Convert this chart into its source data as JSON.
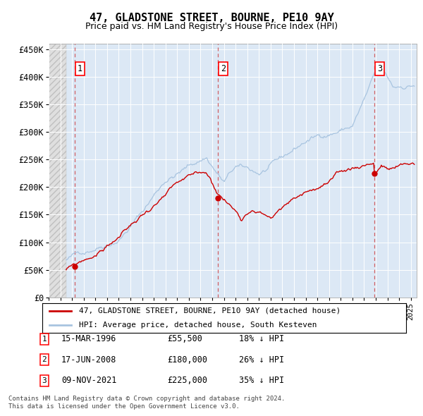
{
  "title": "47, GLADSTONE STREET, BOURNE, PE10 9AY",
  "subtitle": "Price paid vs. HM Land Registry's House Price Index (HPI)",
  "transactions": [
    {
      "num": 1,
      "date_str": "15-MAR-1996",
      "date_x": 1996.21,
      "price": 55500,
      "pct": "18%"
    },
    {
      "num": 2,
      "date_str": "17-JUN-2008",
      "date_x": 2008.46,
      "price": 180000,
      "pct": "26%"
    },
    {
      "num": 3,
      "date_str": "09-NOV-2021",
      "date_x": 2021.86,
      "price": 225000,
      "pct": "35%"
    }
  ],
  "legend_house": "47, GLADSTONE STREET, BOURNE, PE10 9AY (detached house)",
  "legend_hpi": "HPI: Average price, detached house, South Kesteven",
  "footer1": "Contains HM Land Registry data © Crown copyright and database right 2024.",
  "footer2": "This data is licensed under the Open Government Licence v3.0.",
  "hpi_color": "#a8c4e0",
  "house_color": "#cc0000",
  "dashed_color": "#cc3333",
  "background_plot": "#dce8f5",
  "xlim": [
    1994,
    2025.5
  ],
  "ylim": [
    0,
    460000
  ],
  "yticks": [
    0,
    50000,
    100000,
    150000,
    200000,
    250000,
    300000,
    350000,
    400000,
    450000
  ],
  "hatch_end": 1995.5
}
